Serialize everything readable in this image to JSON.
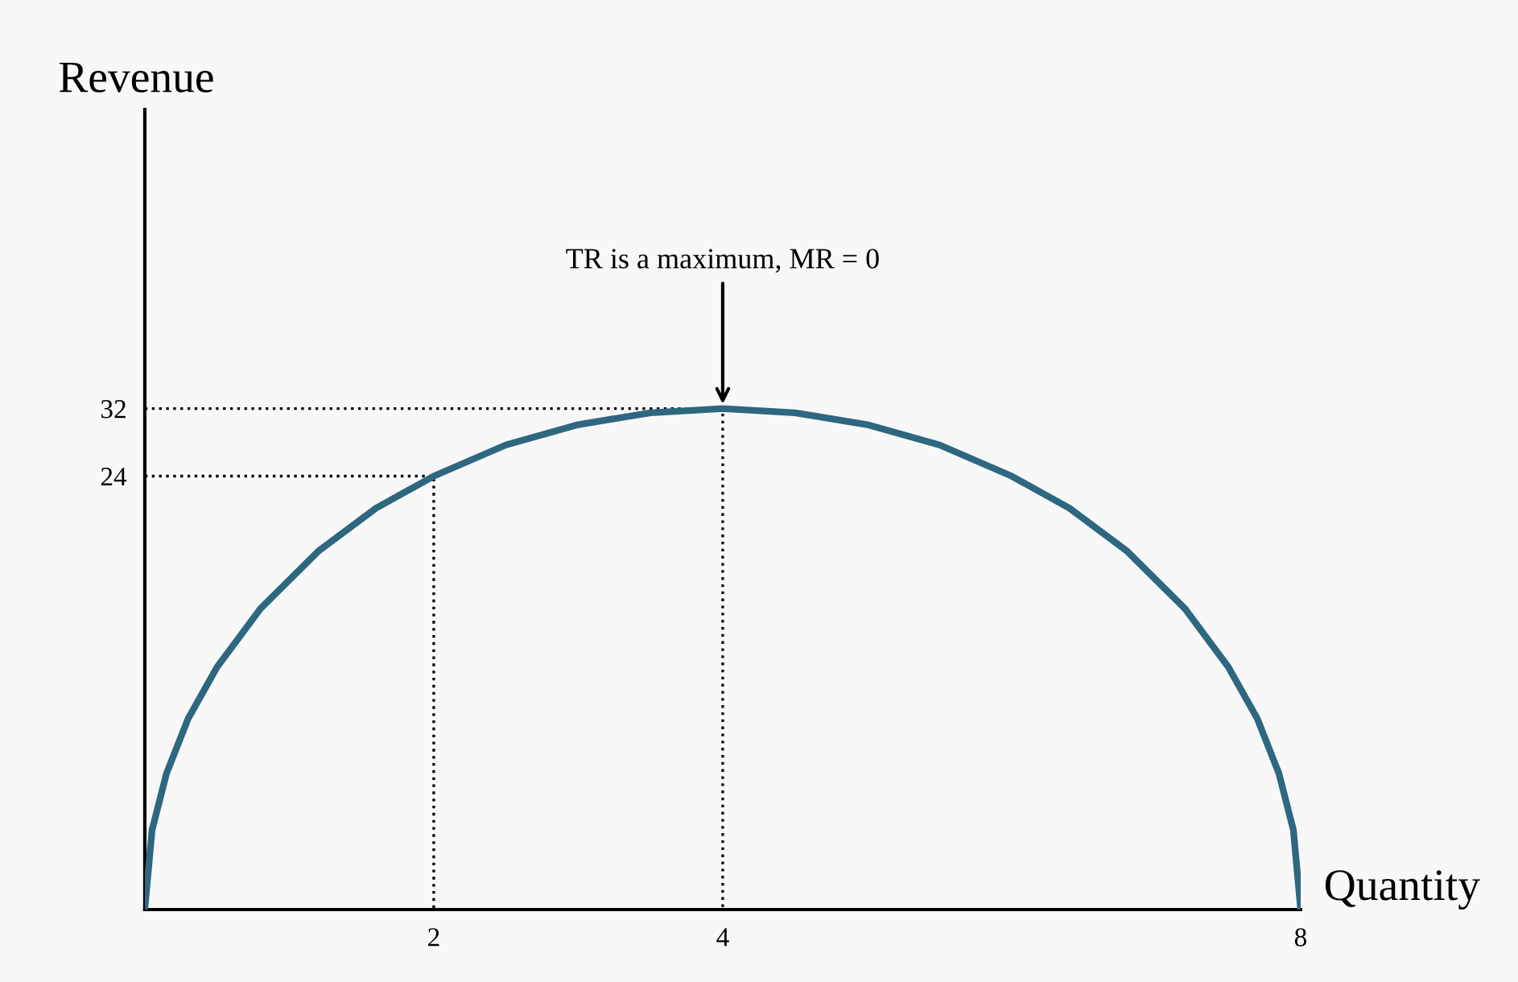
{
  "chart_data": {
    "type": "line",
    "xlabel": "Quantity",
    "ylabel": "Revenue",
    "xlim": [
      0,
      8
    ],
    "xticks": [
      2,
      4,
      8
    ],
    "ylim": [
      -27.3,
      67.4
    ],
    "yticks": [
      24,
      32
    ],
    "series": [
      {
        "color": "#2e6780",
        "x": [
          0,
          0.05,
          0.15,
          0.3,
          0.5,
          0.8,
          1.2,
          1.6,
          2,
          2.5,
          3,
          3.5,
          4,
          4.5,
          5,
          5.5,
          6,
          6.4,
          6.8,
          7.2,
          7.5,
          7.7,
          7.85,
          7.95,
          8
        ],
        "values": [
          -27.2,
          -17.9,
          -11.2,
          -4.7,
          1.4,
          8.3,
          15.1,
          20.2,
          24,
          27.7,
          30.1,
          31.5,
          32,
          31.5,
          30.1,
          27.7,
          24,
          20.2,
          15.1,
          8.3,
          1.4,
          -4.7,
          -11.2,
          -17.9,
          -27.2
        ]
      },
      {
        "color": "#000000",
        "line_style": "dotted",
        "x": [
          0,
          2,
          2
        ],
        "values": [
          24,
          24,
          -27.2
        ]
      },
      {
        "color": "#000000",
        "line_style": "dotted",
        "x": [
          0,
          4,
          4
        ],
        "values": [
          32,
          32,
          -27.2
        ]
      }
    ],
    "annotations": [
      {
        "text": "TR is a maximum, MR = 0",
        "x": 4,
        "y": 32
      }
    ],
    "grid": false,
    "legend": false,
    "marker": "none",
    "line_style": "solid"
  }
}
